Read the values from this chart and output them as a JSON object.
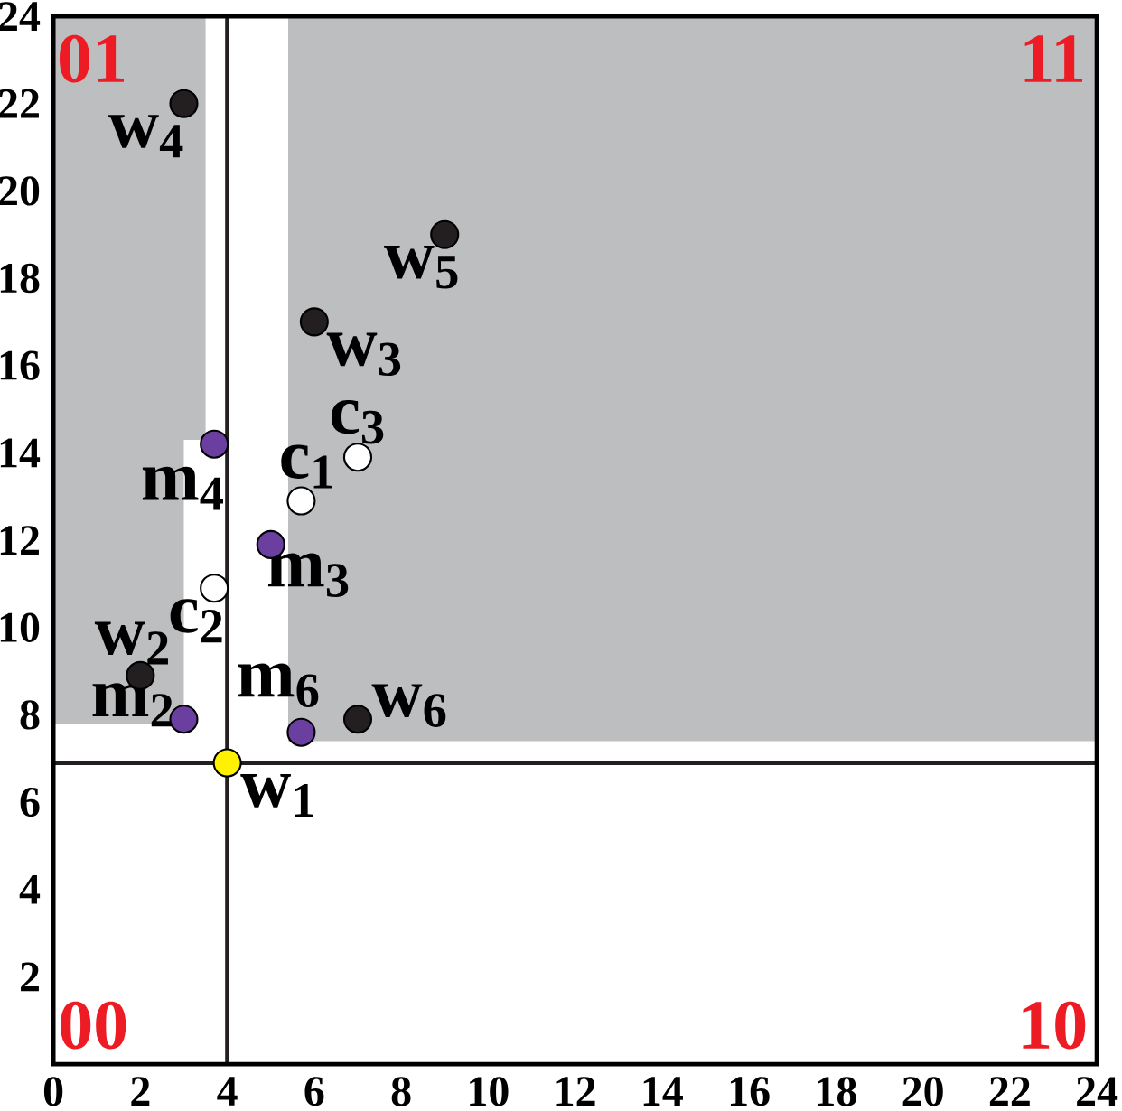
{
  "chart_data": {
    "type": "scatter",
    "xlim": [
      0,
      24
    ],
    "ylim": [
      0,
      24
    ],
    "xticks": [
      0,
      2,
      4,
      6,
      8,
      10,
      12,
      14,
      16,
      18,
      20,
      22,
      24
    ],
    "yticks": [
      2,
      4,
      6,
      8,
      10,
      12,
      14,
      16,
      18,
      20,
      22,
      24
    ],
    "series": [
      {
        "type": "area",
        "color": "#bcbec0",
        "x": [
          0,
          3.0,
          3.0,
          3.5
        ],
        "values": [
          null,
          null,
          null,
          null
        ],
        "lower": [
          7.8,
          7.8,
          14.3,
          14.3
        ],
        "upper": [
          24,
          24,
          24,
          24
        ]
      },
      {
        "type": "area",
        "color": "#bcbec0",
        "x": [
          5.4,
          24
        ],
        "values": [
          null,
          null
        ],
        "lower": [
          7.4,
          7.4
        ],
        "upper": [
          24,
          24
        ]
      },
      {
        "marker": "circle",
        "color": "#231f20",
        "x": [
          2.0,
          6.0,
          3.0,
          9.0,
          7.0
        ],
        "values": [
          8.9,
          17.0,
          22.0,
          19.0,
          7.9
        ]
      },
      {
        "marker": "circle",
        "color": "#fff200",
        "x": [
          4.0
        ],
        "values": [
          6.9
        ]
      },
      {
        "marker": "circle",
        "color": "#6b3fa0",
        "x": [
          3.0,
          5.0,
          3.7,
          5.7
        ],
        "values": [
          7.9,
          11.9,
          14.2,
          7.6
        ]
      },
      {
        "marker": "circle",
        "color": "#ffffff",
        "x": [
          5.7,
          3.7,
          7.0
        ],
        "values": [
          12.9,
          10.9,
          13.9
        ]
      }
    ],
    "ref_lines": [
      {
        "axis": "x",
        "value": 4.0,
        "color": "#231f20"
      },
      {
        "axis": "y",
        "value": 6.9,
        "color": "#231f20"
      }
    ],
    "annotations": [
      "01",
      "11",
      "00",
      "10",
      {
        "text": "w$_{1}$",
        "x": 4.0,
        "y": 6.9
      },
      {
        "text": "w$_{2}$",
        "x": 2.0,
        "y": 8.9
      },
      {
        "text": "w$_{3}$",
        "x": 6.0,
        "y": 17.0
      },
      {
        "text": "w$_{4}$",
        "x": 3.0,
        "y": 22.0
      },
      {
        "text": "w$_{5}$",
        "x": 9.0,
        "y": 19.0
      },
      {
        "text": "w$_{6}$",
        "x": 7.0,
        "y": 7.9
      },
      {
        "text": "m$_{2}$",
        "x": 3.0,
        "y": 7.9
      },
      {
        "text": "m$_{3}$",
        "x": 5.0,
        "y": 11.9
      },
      {
        "text": "m$_{4}$",
        "x": 3.7,
        "y": 14.2
      },
      {
        "text": "m$_{6}$",
        "x": 5.7,
        "y": 7.6
      },
      {
        "text": "c$_{1}$",
        "x": 5.7,
        "y": 12.9
      },
      {
        "text": "c$_{2}$",
        "x": 3.7,
        "y": 10.9
      },
      {
        "text": "c$_{3}$",
        "x": 7.0,
        "y": 13.9
      }
    ]
  }
}
